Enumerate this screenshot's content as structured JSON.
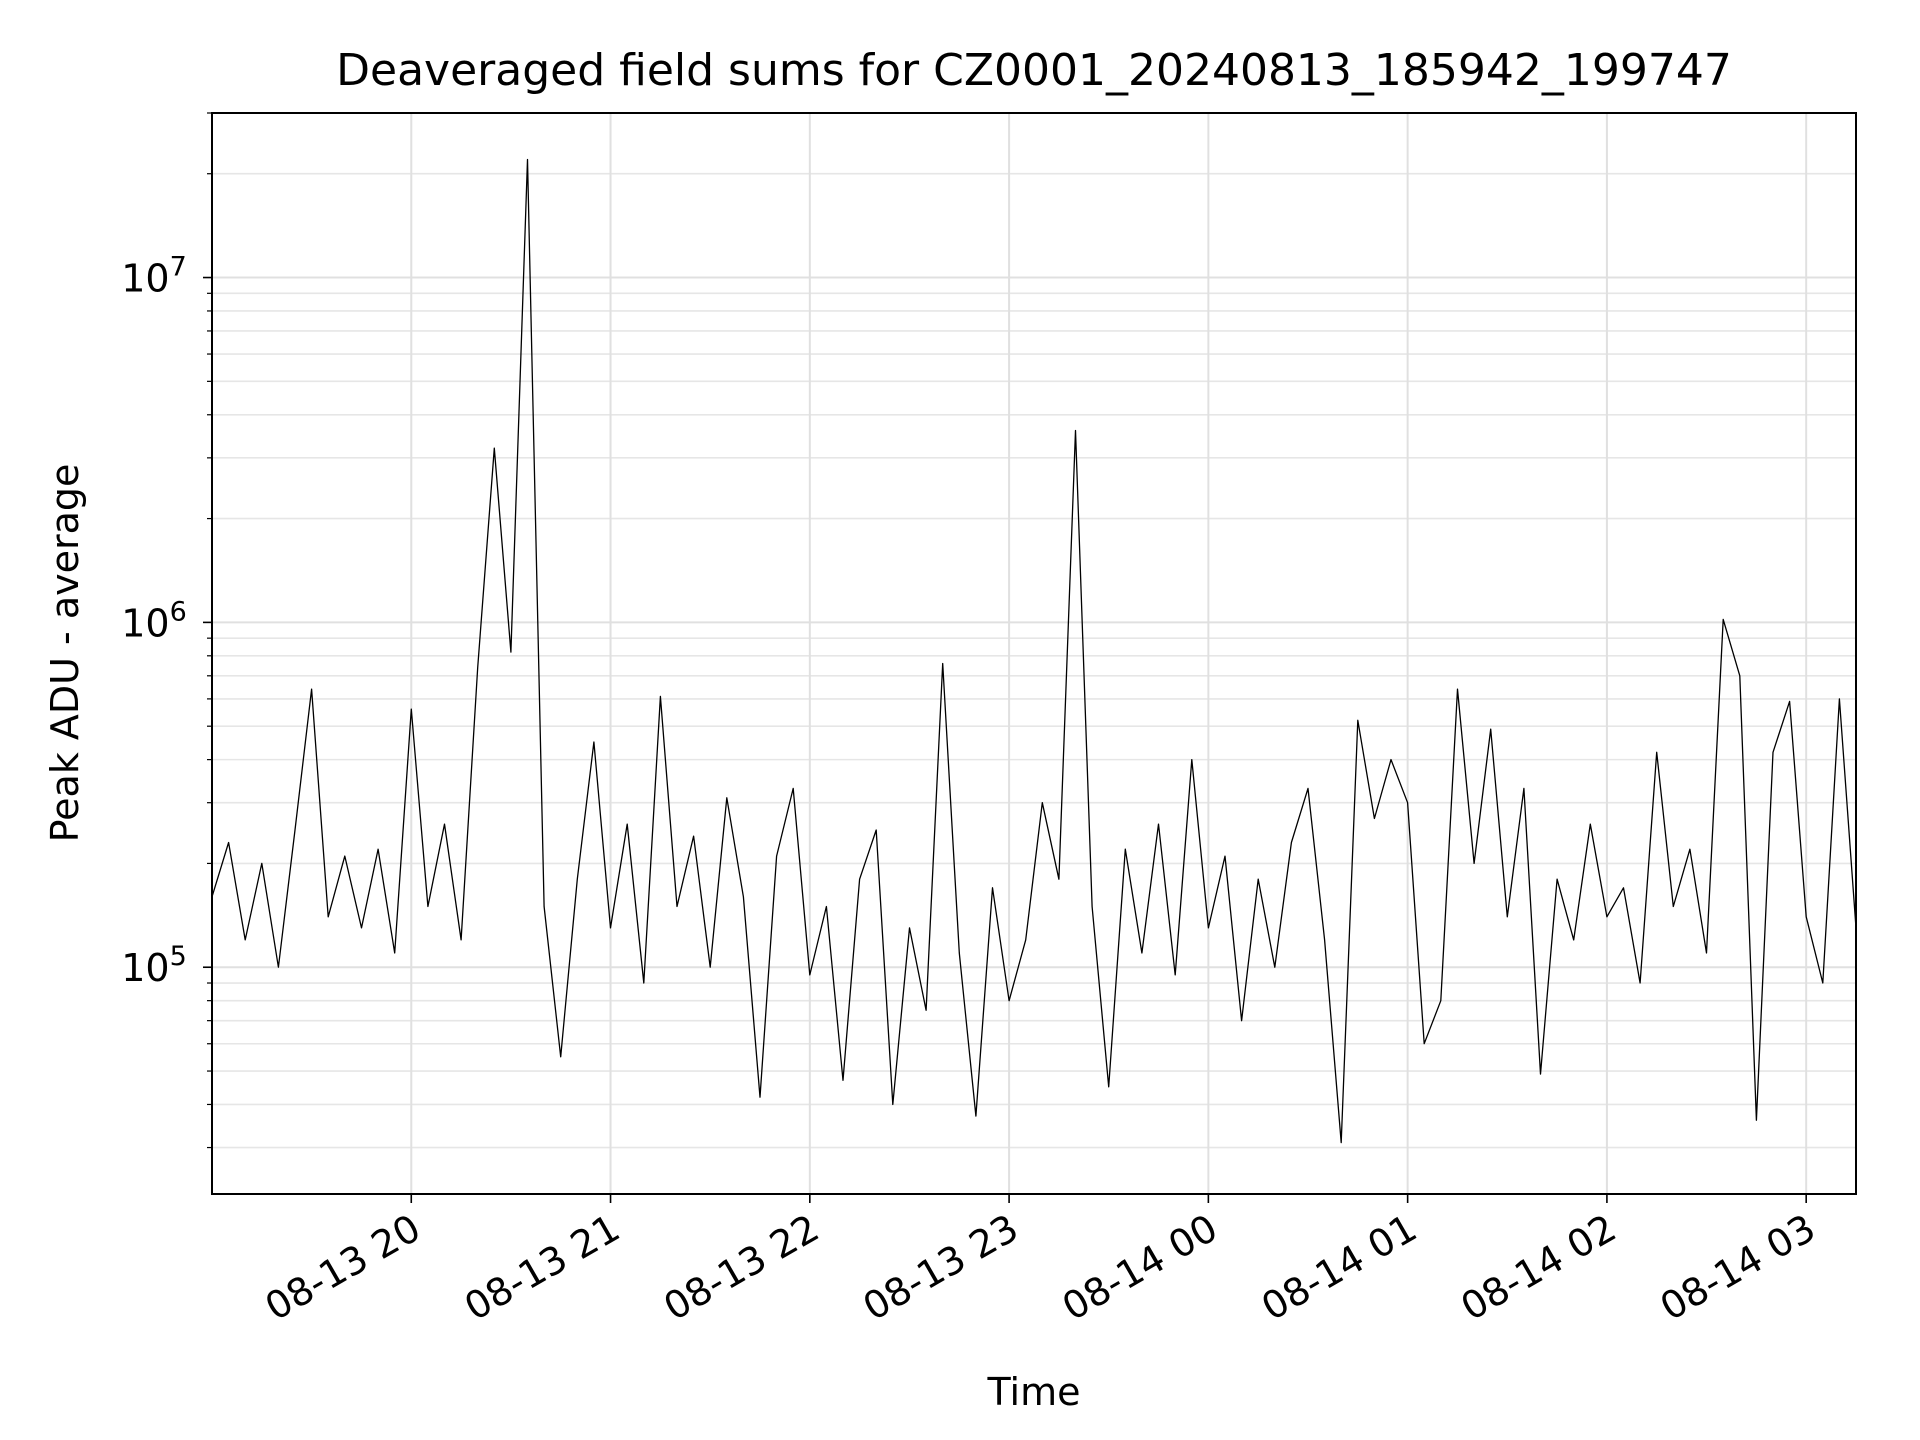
{
  "chart_data": {
    "type": "line",
    "title": "Deaveraged field sums for CZ0001_20240813_185942_199747",
    "xlabel": "Time",
    "ylabel": "Peak ADU - average",
    "yscale": "log",
    "ylim": [
      22000,
      30000000
    ],
    "xlim": [
      "2024-08-13 19:00",
      "2024-08-14 03:15"
    ],
    "xticks": [
      {
        "t": "2024-08-13 20:00",
        "label": "08-13 20"
      },
      {
        "t": "2024-08-13 21:00",
        "label": "08-13 21"
      },
      {
        "t": "2024-08-13 22:00",
        "label": "08-13 22"
      },
      {
        "t": "2024-08-13 23:00",
        "label": "08-13 23"
      },
      {
        "t": "2024-08-14 00:00",
        "label": "08-14 00"
      },
      {
        "t": "2024-08-14 01:00",
        "label": "08-14 01"
      },
      {
        "t": "2024-08-14 02:00",
        "label": "08-14 02"
      },
      {
        "t": "2024-08-14 03:00",
        "label": "08-14 03"
      }
    ],
    "yticks": [
      {
        "value": 100000,
        "base": "10",
        "exp": "5"
      },
      {
        "value": 1000000,
        "base": "10",
        "exp": "6"
      },
      {
        "value": 10000000,
        "base": "10",
        "exp": "7"
      }
    ],
    "grid": true,
    "series": [
      {
        "color": "#000000",
        "points": [
          [
            "2024-08-13 19:00",
            160000
          ],
          [
            "2024-08-13 19:05",
            230000
          ],
          [
            "2024-08-13 19:10",
            120000
          ],
          [
            "2024-08-13 19:15",
            200000
          ],
          [
            "2024-08-13 19:20",
            100000
          ],
          [
            "2024-08-13 19:25",
            250000
          ],
          [
            "2024-08-13 19:30",
            640000
          ],
          [
            "2024-08-13 19:35",
            140000
          ],
          [
            "2024-08-13 19:40",
            210000
          ],
          [
            "2024-08-13 19:45",
            130000
          ],
          [
            "2024-08-13 19:50",
            220000
          ],
          [
            "2024-08-13 19:55",
            110000
          ],
          [
            "2024-08-13 20:00",
            560000
          ],
          [
            "2024-08-13 20:05",
            150000
          ],
          [
            "2024-08-13 20:10",
            260000
          ],
          [
            "2024-08-13 20:15",
            120000
          ],
          [
            "2024-08-13 20:20",
            740000
          ],
          [
            "2024-08-13 20:25",
            3200000
          ],
          [
            "2024-08-13 20:30",
            820000
          ],
          [
            "2024-08-13 20:35",
            22000000
          ],
          [
            "2024-08-13 20:40",
            150000
          ],
          [
            "2024-08-13 20:45",
            55000
          ],
          [
            "2024-08-13 20:50",
            180000
          ],
          [
            "2024-08-13 20:55",
            450000
          ],
          [
            "2024-08-13 21:00",
            130000
          ],
          [
            "2024-08-13 21:05",
            260000
          ],
          [
            "2024-08-13 21:10",
            90000
          ],
          [
            "2024-08-13 21:15",
            610000
          ],
          [
            "2024-08-13 21:20",
            150000
          ],
          [
            "2024-08-13 21:25",
            240000
          ],
          [
            "2024-08-13 21:30",
            100000
          ],
          [
            "2024-08-13 21:35",
            310000
          ],
          [
            "2024-08-13 21:40",
            160000
          ],
          [
            "2024-08-13 21:45",
            42000
          ],
          [
            "2024-08-13 21:50",
            210000
          ],
          [
            "2024-08-13 21:55",
            330000
          ],
          [
            "2024-08-13 22:00",
            95000
          ],
          [
            "2024-08-13 22:05",
            150000
          ],
          [
            "2024-08-13 22:10",
            47000
          ],
          [
            "2024-08-13 22:15",
            180000
          ],
          [
            "2024-08-13 22:20",
            250000
          ],
          [
            "2024-08-13 22:25",
            40000
          ],
          [
            "2024-08-13 22:30",
            130000
          ],
          [
            "2024-08-13 22:35",
            75000
          ],
          [
            "2024-08-13 22:40",
            760000
          ],
          [
            "2024-08-13 22:45",
            110000
          ],
          [
            "2024-08-13 22:50",
            37000
          ],
          [
            "2024-08-13 22:55",
            170000
          ],
          [
            "2024-08-13 23:00",
            80000
          ],
          [
            "2024-08-13 23:05",
            120000
          ],
          [
            "2024-08-13 23:10",
            300000
          ],
          [
            "2024-08-13 23:15",
            180000
          ],
          [
            "2024-08-13 23:20",
            3600000
          ],
          [
            "2024-08-13 23:25",
            150000
          ],
          [
            "2024-08-13 23:30",
            45000
          ],
          [
            "2024-08-13 23:35",
            220000
          ],
          [
            "2024-08-13 23:40",
            110000
          ],
          [
            "2024-08-13 23:45",
            260000
          ],
          [
            "2024-08-13 23:50",
            95000
          ],
          [
            "2024-08-13 23:55",
            400000
          ],
          [
            "2024-08-14 00:00",
            130000
          ],
          [
            "2024-08-14 00:05",
            210000
          ],
          [
            "2024-08-14 00:10",
            70000
          ],
          [
            "2024-08-14 00:15",
            180000
          ],
          [
            "2024-08-14 00:20",
            100000
          ],
          [
            "2024-08-14 00:25",
            230000
          ],
          [
            "2024-08-14 00:30",
            330000
          ],
          [
            "2024-08-14 00:35",
            120000
          ],
          [
            "2024-08-14 00:40",
            31000
          ],
          [
            "2024-08-14 00:45",
            520000
          ],
          [
            "2024-08-14 00:50",
            270000
          ],
          [
            "2024-08-14 00:55",
            400000
          ],
          [
            "2024-08-14 01:00",
            300000
          ],
          [
            "2024-08-14 01:05",
            60000
          ],
          [
            "2024-08-14 01:10",
            80000
          ],
          [
            "2024-08-14 01:15",
            640000
          ],
          [
            "2024-08-14 01:20",
            200000
          ],
          [
            "2024-08-14 01:25",
            490000
          ],
          [
            "2024-08-14 01:30",
            140000
          ],
          [
            "2024-08-14 01:35",
            330000
          ],
          [
            "2024-08-14 01:40",
            49000
          ],
          [
            "2024-08-14 01:45",
            180000
          ],
          [
            "2024-08-14 01:50",
            120000
          ],
          [
            "2024-08-14 01:55",
            260000
          ],
          [
            "2024-08-14 02:00",
            140000
          ],
          [
            "2024-08-14 02:05",
            170000
          ],
          [
            "2024-08-14 02:10",
            90000
          ],
          [
            "2024-08-14 02:15",
            420000
          ],
          [
            "2024-08-14 02:20",
            150000
          ],
          [
            "2024-08-14 02:25",
            220000
          ],
          [
            "2024-08-14 02:30",
            110000
          ],
          [
            "2024-08-14 02:35",
            1020000
          ],
          [
            "2024-08-14 02:40",
            700000
          ],
          [
            "2024-08-14 02:45",
            36000
          ],
          [
            "2024-08-14 02:50",
            420000
          ],
          [
            "2024-08-14 02:55",
            590000
          ],
          [
            "2024-08-14 03:00",
            140000
          ],
          [
            "2024-08-14 03:05",
            90000
          ],
          [
            "2024-08-14 03:10",
            600000
          ],
          [
            "2024-08-14 03:15",
            130000
          ]
        ]
      }
    ]
  }
}
